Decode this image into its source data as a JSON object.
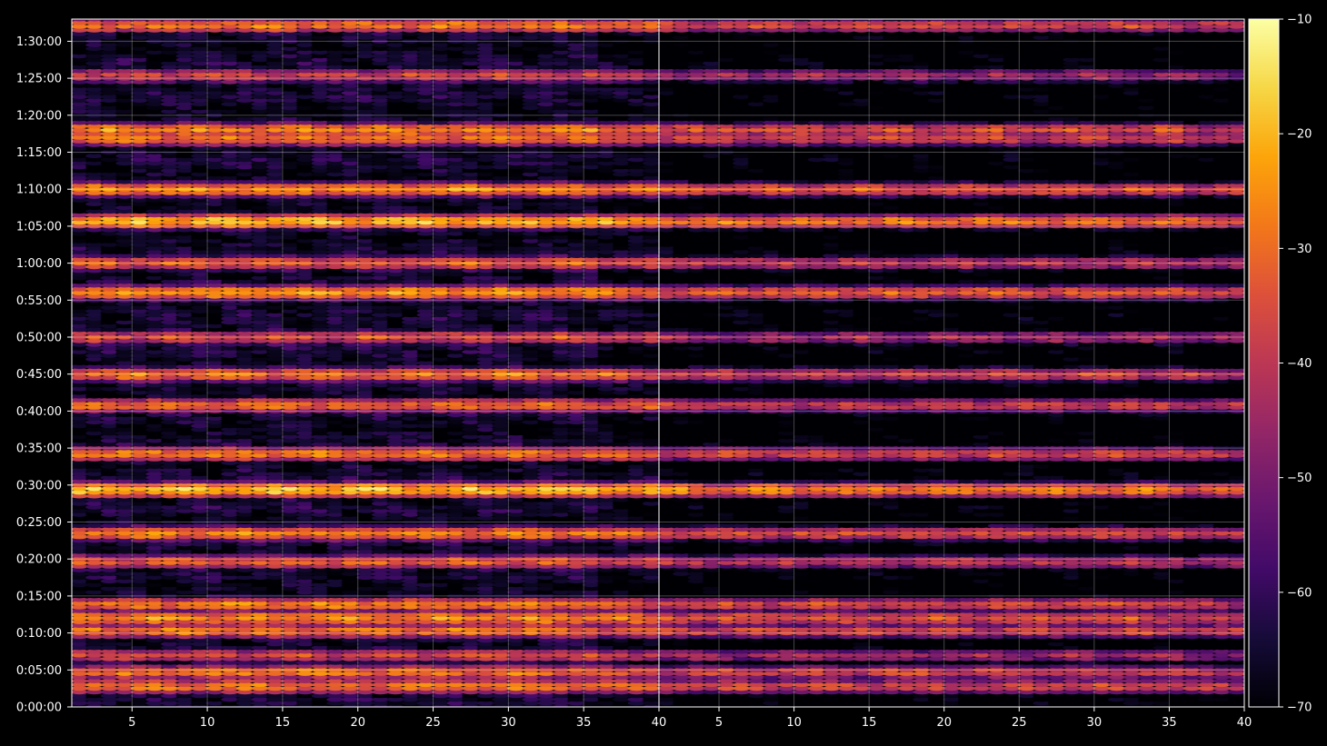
{
  "chart_data": [
    {
      "type": "heatmap",
      "panel": "left",
      "x_range": [
        1,
        40
      ],
      "y_range_seconds": [
        0,
        5580
      ],
      "x_ticks": [
        5,
        10,
        15,
        20,
        25,
        30,
        35,
        40
      ],
      "x_tick_labels": [
        "5",
        "10",
        "15",
        "20",
        "25",
        "30",
        "35",
        "40"
      ],
      "y_ticks": [
        0,
        300,
        600,
        900,
        1200,
        1500,
        1800,
        2100,
        2400,
        2700,
        3000,
        3300,
        3600,
        3900,
        4200,
        4500,
        4800,
        5100,
        5400
      ],
      "y_tick_labels": [
        "0:00:00",
        "0:05:00",
        "0:10:00",
        "0:15:00",
        "0:20:00",
        "0:25:00",
        "0:30:00",
        "0:35:00",
        "0:40:00",
        "0:45:00",
        "0:50:00",
        "0:55:00",
        "1:00:00",
        "1:05:00",
        "1:10:00",
        "1:15:00",
        "1:20:00",
        "1:25:00",
        "1:30:00"
      ],
      "grid": true,
      "bright_bands_seconds": [
        {
          "t": 170,
          "value": -27
        },
        {
          "t": 280,
          "value": -30
        },
        {
          "t": 420,
          "value": -35
        },
        {
          "t": 620,
          "value": -30
        },
        {
          "t": 720,
          "value": -24
        },
        {
          "t": 830,
          "value": -30
        },
        {
          "t": 1180,
          "value": -32
        },
        {
          "t": 1410,
          "value": -28
        },
        {
          "t": 1760,
          "value": -18
        },
        {
          "t": 2050,
          "value": -28
        },
        {
          "t": 2450,
          "value": -30
        },
        {
          "t": 2700,
          "value": -29
        },
        {
          "t": 3000,
          "value": -34
        },
        {
          "t": 3360,
          "value": -25
        },
        {
          "t": 3600,
          "value": -32
        },
        {
          "t": 3940,
          "value": -22
        },
        {
          "t": 4200,
          "value": -27
        },
        {
          "t": 4610,
          "value": -28
        },
        {
          "t": 4680,
          "value": -28
        },
        {
          "t": 5120,
          "value": -35
        },
        {
          "t": 5530,
          "value": -29
        }
      ]
    },
    {
      "type": "heatmap",
      "panel": "right",
      "x_range": [
        1,
        40
      ],
      "y_range_seconds": [
        0,
        5580
      ],
      "x_ticks": [
        5,
        10,
        15,
        20,
        25,
        30,
        35,
        40
      ],
      "x_tick_labels": [
        "5",
        "10",
        "15",
        "20",
        "25",
        "30",
        "35",
        "40"
      ],
      "grid": true,
      "offset_db": -8
    }
  ],
  "colorbar": {
    "cmap": "inferno",
    "min": -70,
    "max": -10,
    "ticks": [
      -10,
      -20,
      -30,
      -40,
      -50,
      -60,
      -70
    ],
    "tick_labels": [
      "−10",
      "−20",
      "−30",
      "−40",
      "−50",
      "−60",
      "−70"
    ]
  }
}
